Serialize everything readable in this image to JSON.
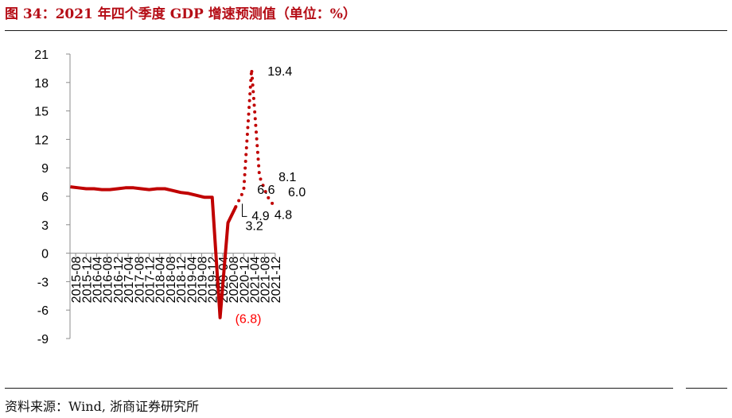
{
  "header": {
    "title": "图 34：2021 年四个季度 GDP 增速预测值（单位：%）"
  },
  "footer": {
    "source": "资料来源：Wind, 浙商证券研究所"
  },
  "chart_data": {
    "type": "line",
    "ylim": [
      -9,
      21
    ],
    "yticks": [
      -9,
      -6,
      -3,
      0,
      3,
      6,
      9,
      12,
      15,
      18,
      21
    ],
    "grid": false,
    "xticks": [
      "2015-08",
      "2015-12",
      "2016-04",
      "2016-08",
      "2016-12",
      "2017-04",
      "2017-08",
      "2017-12",
      "2018-04",
      "2018-08",
      "2018-12",
      "2019-04",
      "2019-08",
      "2019-12",
      "2020-04",
      "2020-08",
      "2020-12",
      "2021-04",
      "2021-08",
      "2021-12"
    ],
    "series": [
      {
        "style": "solid",
        "color": "#c00000",
        "points": [
          {
            "x": "2015-06",
            "y": 7.0
          },
          {
            "x": "2015-09",
            "y": 6.9
          },
          {
            "x": "2015-12",
            "y": 6.8
          },
          {
            "x": "2016-03",
            "y": 6.8
          },
          {
            "x": "2016-06",
            "y": 6.7
          },
          {
            "x": "2016-09",
            "y": 6.7
          },
          {
            "x": "2016-12",
            "y": 6.8
          },
          {
            "x": "2017-03",
            "y": 6.9
          },
          {
            "x": "2017-06",
            "y": 6.9
          },
          {
            "x": "2017-09",
            "y": 6.8
          },
          {
            "x": "2017-12",
            "y": 6.7
          },
          {
            "x": "2018-03",
            "y": 6.8
          },
          {
            "x": "2018-06",
            "y": 6.8
          },
          {
            "x": "2018-09",
            "y": 6.6
          },
          {
            "x": "2018-12",
            "y": 6.4
          },
          {
            "x": "2019-03",
            "y": 6.3
          },
          {
            "x": "2019-06",
            "y": 6.1
          },
          {
            "x": "2019-09",
            "y": 5.9
          },
          {
            "x": "2019-12",
            "y": 5.9
          },
          {
            "x": "2020-03",
            "y": -6.8
          },
          {
            "x": "2020-06",
            "y": 3.2
          },
          {
            "x": "2020-09",
            "y": 4.9
          }
        ]
      },
      {
        "style": "dotted",
        "color": "#c00000",
        "points": [
          {
            "x": "2020-09",
            "y": 4.9
          },
          {
            "x": "2020-12",
            "y": 6.6
          },
          {
            "x": "2021-03",
            "y": 19.4
          },
          {
            "x": "2021-06",
            "y": 8.1
          },
          {
            "x": "2021-09",
            "y": 6.0
          },
          {
            "x": "2021-12",
            "y": 4.8
          }
        ]
      }
    ],
    "annotations": [
      {
        "x": "2020-03",
        "y": -6.8,
        "text": "(6.8)",
        "color": "#ff0000"
      },
      {
        "x": "2020-06",
        "y": 3.2,
        "text": "3.2",
        "color": "#000000"
      },
      {
        "x": "2020-09",
        "y": 4.9,
        "text": "4.9",
        "color": "#000000"
      },
      {
        "x": "2020-12",
        "y": 6.6,
        "text": "6.6",
        "color": "#000000"
      },
      {
        "x": "2021-03",
        "y": 19.4,
        "text": "19.4",
        "color": "#000000"
      },
      {
        "x": "2021-06",
        "y": 8.1,
        "text": "8.1",
        "color": "#000000"
      },
      {
        "x": "2021-09",
        "y": 6.0,
        "text": "6.0",
        "color": "#000000"
      },
      {
        "x": "2021-12",
        "y": 4.8,
        "text": "4.8",
        "color": "#000000"
      }
    ]
  }
}
